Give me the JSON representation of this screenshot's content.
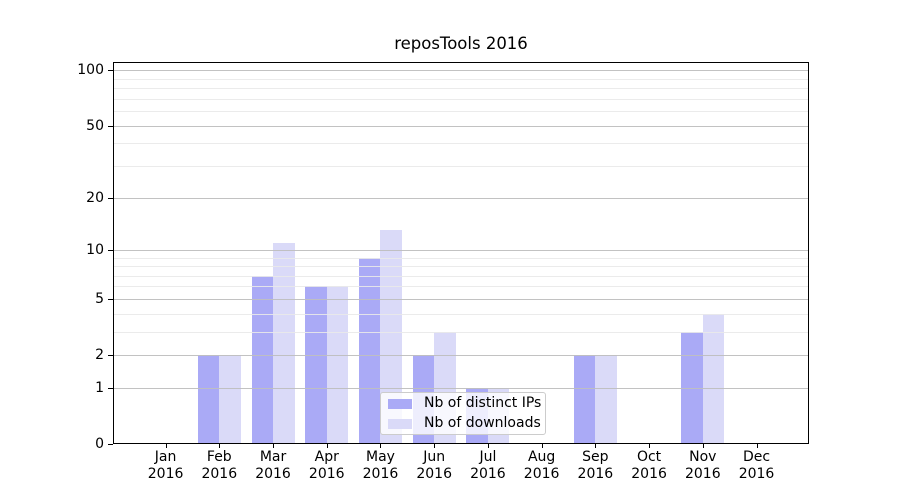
{
  "chart_data": {
    "type": "bar",
    "title": "reposTools 2016",
    "x_months": [
      "Jan",
      "Feb",
      "Mar",
      "Apr",
      "May",
      "Jun",
      "Jul",
      "Aug",
      "Sep",
      "Oct",
      "Nov",
      "Dec"
    ],
    "x_year": "2016",
    "series": [
      {
        "name": "Nb of distinct IPs",
        "color": "#aaaaf6",
        "values": [
          0,
          2,
          7,
          6,
          9,
          2,
          1,
          0,
          2,
          0,
          3,
          0
        ]
      },
      {
        "name": "Nb of downloads",
        "color": "#dadaf8",
        "values": [
          0,
          2,
          11,
          6,
          13,
          3,
          1,
          0,
          2,
          0,
          4,
          0
        ]
      }
    ],
    "yscale": "log1p",
    "ylim": [
      0,
      111
    ],
    "y_major_ticks": [
      0,
      1,
      2,
      5,
      10,
      20,
      50,
      100
    ],
    "y_minor_ticks": [
      3,
      4,
      6,
      7,
      8,
      9,
      30,
      40,
      60,
      70,
      80,
      90
    ],
    "grid": true,
    "legend_position": "lower center",
    "colors": {
      "grid_major": "#bfbfbf",
      "grid_minor": "#e9e9e9",
      "spine": "#000000",
      "text": "#000000",
      "legend_border": "#cccccc",
      "legend_bg": "rgba(255,255,255,0.8)"
    }
  }
}
